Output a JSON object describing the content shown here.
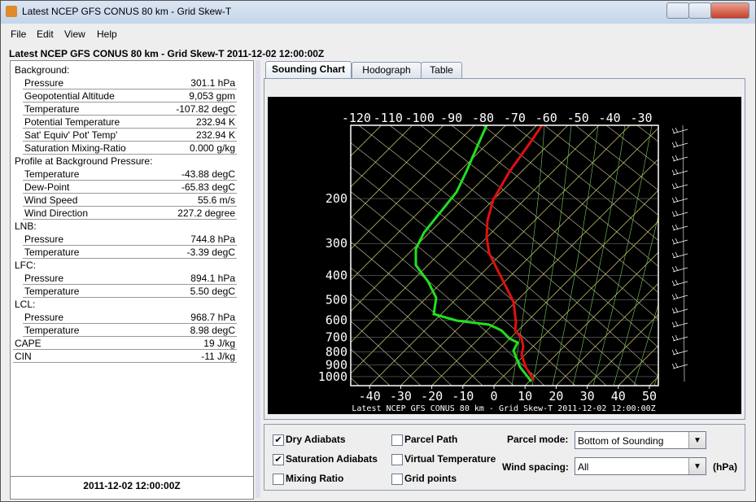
{
  "window": {
    "title": "Latest NCEP GFS CONUS 80 km - Grid Skew-T"
  },
  "menu": [
    "File",
    "Edit",
    "View",
    "Help"
  ],
  "header": "Latest NCEP GFS CONUS 80 km - Grid Skew-T 2011-12-02 12:00:00Z",
  "info": {
    "sections": [
      {
        "heading": "Background:",
        "rows": [
          {
            "label": "Pressure",
            "value": "301.1 hPa"
          },
          {
            "label": "Geopotential Altitude",
            "value": "9,053 gpm"
          },
          {
            "label": "Temperature",
            "value": "-107.82 degC"
          },
          {
            "label": "Potential Temperature",
            "value": "232.94 K"
          },
          {
            "label": "Sat' Equiv' Pot' Temp'",
            "value": "232.94 K"
          },
          {
            "label": "Saturation Mixing-Ratio",
            "value": "0.000 g/kg"
          }
        ]
      },
      {
        "heading": "Profile at Background Pressure:",
        "rows": [
          {
            "label": "Temperature",
            "value": "-43.88 degC"
          },
          {
            "label": "Dew-Point",
            "value": "-65.83 degC"
          },
          {
            "label": "Wind Speed",
            "value": "55.6 m/s"
          },
          {
            "label": "Wind Direction",
            "value": "227.2 degree"
          }
        ]
      },
      {
        "heading": "LNB:",
        "rows": [
          {
            "label": "Pressure",
            "value": "744.8 hPa"
          },
          {
            "label": "Temperature",
            "value": "-3.39 degC"
          }
        ]
      },
      {
        "heading": "LFC:",
        "rows": [
          {
            "label": "Pressure",
            "value": "894.1 hPa"
          },
          {
            "label": "Temperature",
            "value": "5.50 degC"
          }
        ]
      },
      {
        "heading": "LCL:",
        "rows": [
          {
            "label": "Pressure",
            "value": "968.7 hPa"
          },
          {
            "label": "Temperature",
            "value": "8.98 degC"
          }
        ]
      }
    ],
    "totals": [
      {
        "label": "CAPE",
        "value": "19 J/kg"
      },
      {
        "label": "CIN",
        "value": "-11 J/kg"
      }
    ],
    "footer": "2011-12-02 12:00:00Z"
  },
  "tabs": [
    "Sounding Chart",
    "Hodograph",
    "Table"
  ],
  "chart": {
    "top_temps": [
      -120,
      -110,
      -100,
      -90,
      -80,
      -70,
      -60,
      -50,
      -40,
      -30
    ],
    "bottom_temps": [
      -40,
      -30,
      -20,
      -10,
      0,
      10,
      20,
      30,
      40,
      50
    ],
    "pressures": [
      200,
      300,
      400,
      500,
      600,
      700,
      800,
      900,
      1000
    ],
    "caption": "Latest NCEP GFS CONUS 80 km - Grid Skew-T 2011-12-02 12:00:00Z"
  },
  "controls": {
    "checkboxes": [
      {
        "label": "Dry Adiabats",
        "checked": true
      },
      {
        "label": "Saturation Adiabats",
        "checked": true
      },
      {
        "label": "Mixing Ratio",
        "checked": false
      },
      {
        "label": "Parcel Path",
        "checked": false
      },
      {
        "label": "Virtual Temperature",
        "checked": false
      },
      {
        "label": "Grid points",
        "checked": false
      }
    ],
    "parcel_mode_label": "Parcel mode:",
    "parcel_mode": "Bottom of Sounding",
    "wind_spacing_label": "Wind spacing:",
    "wind_spacing": "All",
    "unit": "(hPa)"
  }
}
